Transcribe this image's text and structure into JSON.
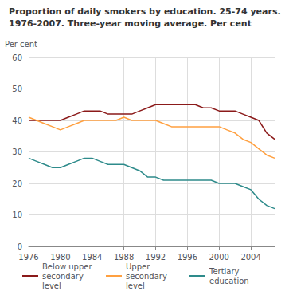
{
  "chart_data": {
    "type": "line",
    "title": "Proportion of daily smokers by education. 25-74 years.",
    "subtitle": "1976-2007. Three-year moving average. Per cent",
    "ylabel": "Per cent",
    "x": [
      1976,
      1977,
      1978,
      1979,
      1980,
      1981,
      1982,
      1983,
      1984,
      1985,
      1986,
      1987,
      1988,
      1989,
      1990,
      1991,
      1992,
      1993,
      1994,
      1995,
      1996,
      1997,
      1998,
      1999,
      2000,
      2001,
      2002,
      2003,
      2004,
      2005,
      2006,
      2007
    ],
    "series": [
      {
        "name": "Below upper secondary level",
        "color": "#8B1A1A",
        "values": [
          40,
          40,
          40,
          40,
          40,
          41,
          42,
          43,
          43,
          43,
          42,
          42,
          42,
          42,
          43,
          44,
          45,
          45,
          45,
          45,
          45,
          45,
          44,
          44,
          43,
          43,
          43,
          42,
          41,
          40,
          36,
          34
        ]
      },
      {
        "name": "Upper secondary level",
        "color": "#FFA040",
        "values": [
          41,
          40,
          39,
          38,
          37,
          38,
          39,
          40,
          40,
          40,
          40,
          40,
          41,
          40,
          40,
          40,
          40,
          39,
          38,
          38,
          38,
          38,
          38,
          38,
          38,
          37,
          36,
          34,
          33,
          31,
          29,
          28
        ]
      },
      {
        "name": "Tertiary education",
        "color": "#2E8B8B",
        "values": [
          28,
          27,
          26,
          25,
          25,
          26,
          27,
          28,
          28,
          27,
          26,
          26,
          26,
          25,
          24,
          22,
          22,
          21,
          21,
          21,
          21,
          21,
          21,
          21,
          20,
          20,
          20,
          19,
          18,
          15,
          13,
          12
        ]
      }
    ],
    "xlim": [
      1976,
      2007
    ],
    "xticks": [
      1976,
      1980,
      1984,
      1988,
      1992,
      1996,
      2000,
      2004
    ],
    "ylim": [
      0,
      60
    ],
    "yticks": [
      0,
      10,
      20,
      30,
      40,
      50,
      60
    ],
    "grid": true,
    "legend": "bottom"
  }
}
